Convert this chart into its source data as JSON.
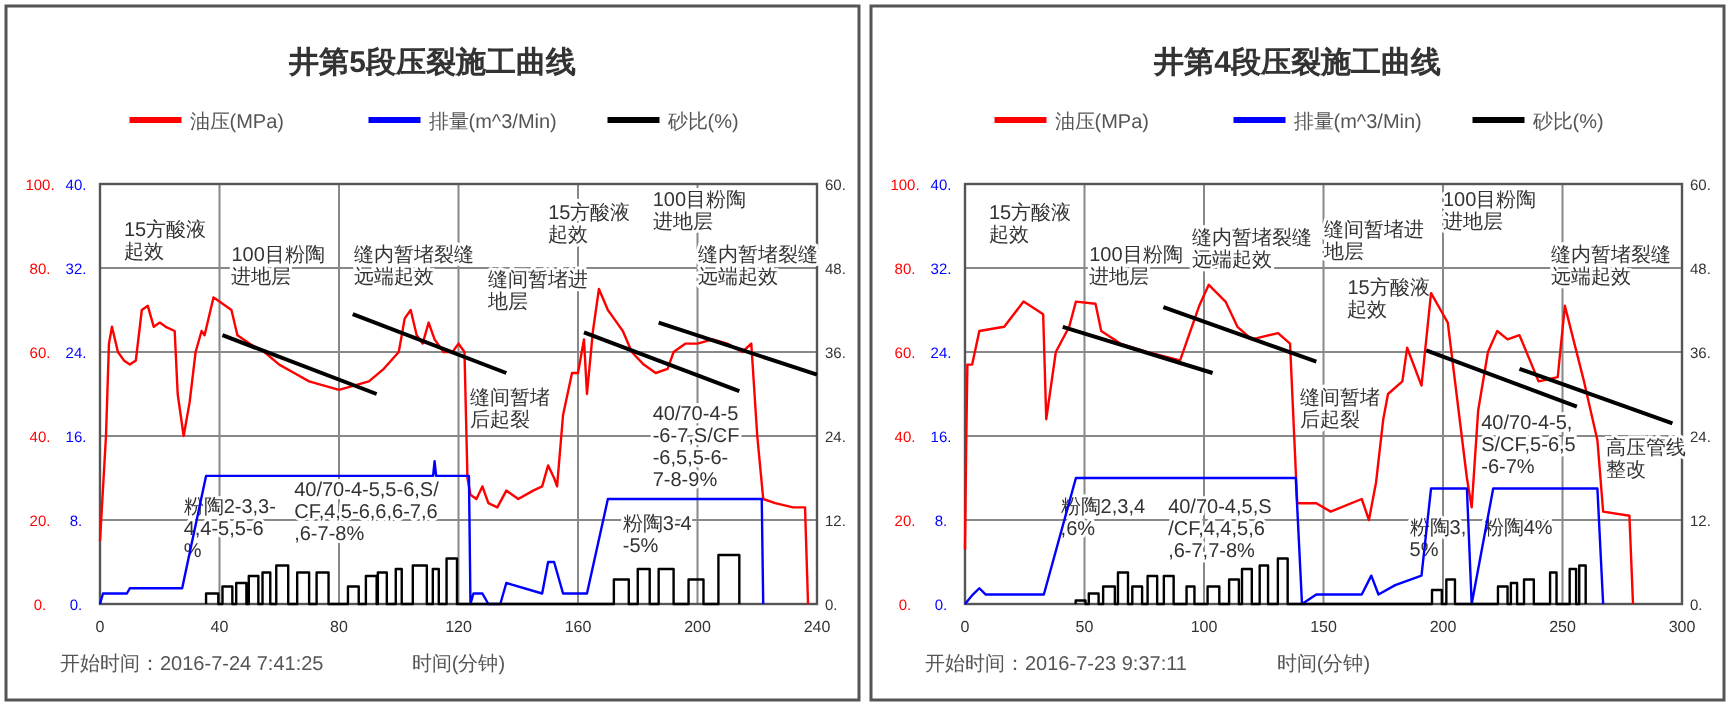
{
  "chart_data": [
    {
      "type": "line",
      "title": "井第5段压裂施工曲线",
      "xlabel": "时间(分钟)",
      "grid": true,
      "legend": "top",
      "xlim": [
        0,
        240
      ],
      "xticks": [
        0,
        40,
        80,
        120,
        160,
        200,
        240
      ],
      "ylim": [
        0,
        100
      ],
      "yticks": [
        {
          "value": 0,
          "label": "0."
        },
        {
          "value": 20,
          "label": "20."
        },
        {
          "value": 40,
          "label": "40."
        },
        {
          "value": 60,
          "label": "60."
        },
        {
          "value": 80,
          "label": "80."
        },
        {
          "value": 100,
          "label": "100."
        }
      ],
      "y3lim": [
        0,
        40
      ],
      "y3ticks": [
        {
          "value": 0,
          "label": "0."
        },
        {
          "value": 8,
          "label": "8."
        },
        {
          "value": 16,
          "label": "16."
        },
        {
          "value": 24,
          "label": "24."
        },
        {
          "value": 32,
          "label": "32."
        },
        {
          "value": 40,
          "label": "40."
        }
      ],
      "y2lim": [
        0,
        60
      ],
      "y2ticks": [
        {
          "value": 0,
          "label": "0."
        },
        {
          "value": 12,
          "label": "12."
        },
        {
          "value": 24,
          "label": "24."
        },
        {
          "value": 36,
          "label": "36."
        },
        {
          "value": 48,
          "label": "48."
        },
        {
          "value": 60,
          "label": "60."
        }
      ],
      "series": [
        {
          "name": "油压(MPa)",
          "color": "#ff0000",
          "x": [
            0,
            2,
            3,
            4,
            6,
            8,
            10,
            12,
            14,
            16,
            18,
            20,
            22,
            25,
            26,
            28,
            30,
            32,
            34,
            35,
            37,
            38,
            40,
            42,
            44,
            46,
            50,
            55,
            60,
            65,
            70,
            75,
            80,
            85,
            90,
            95,
            100,
            102,
            104,
            106,
            108,
            110,
            112,
            115,
            118,
            120,
            122,
            123,
            124,
            126,
            128,
            130,
            133,
            136,
            140,
            145,
            148,
            150,
            152,
            153,
            155,
            158,
            160,
            162,
            163,
            165,
            167,
            170,
            172,
            175,
            178,
            182,
            186,
            190,
            192,
            196,
            200,
            205,
            210,
            215,
            218,
            220,
            222,
            226,
            232,
            236,
            237
          ],
          "values": [
            15,
            40,
            62,
            66,
            60,
            58,
            57,
            58,
            70,
            71,
            66,
            67,
            66,
            65,
            50,
            40,
            48,
            60,
            65,
            64,
            70,
            73,
            72,
            71,
            70,
            64,
            62,
            60,
            57,
            55,
            53,
            52,
            51,
            52,
            53,
            56,
            60,
            68,
            70,
            64,
            62,
            67,
            63,
            60,
            60,
            62,
            60,
            30,
            26,
            25,
            28,
            24,
            23,
            27,
            25,
            27,
            28,
            33,
            30,
            28,
            45,
            55,
            55,
            63,
            50,
            65,
            75,
            70,
            68,
            65,
            60,
            57,
            55,
            56,
            60,
            62,
            62,
            63,
            62,
            60,
            62,
            40,
            25,
            24,
            23,
            23,
            0
          ]
        },
        {
          "name": "排量(m^3/Min)",
          "color": "#0000ff",
          "axis": "y3",
          "x": [
            0,
            1,
            9,
            10,
            22,
            27.5,
            35.5,
            111.5,
            112,
            112.5,
            123.5,
            124,
            125,
            128,
            130,
            134,
            136,
            148,
            150,
            152,
            155,
            163,
            170,
            221.5,
            222
          ],
          "values": [
            0,
            1,
            1,
            1.5,
            1.5,
            1.5,
            12.2,
            12.2,
            13.6,
            12.2,
            12.2,
            0,
            1,
            1,
            0,
            0,
            2,
            1,
            4,
            4,
            1,
            1,
            10,
            10,
            0
          ]
        },
        {
          "name": "砂比(%)",
          "color": "#000000",
          "axis": "y2",
          "x": [
            35.5,
            35.5,
            39.6,
            39.6,
            41,
            41,
            44.3,
            44.3,
            45.6,
            45.6,
            49,
            49,
            49.8,
            49.8,
            53,
            53,
            54.4,
            54.4,
            57,
            57,
            59,
            59,
            63,
            63,
            66,
            66,
            70,
            70,
            72.5,
            72.5,
            76.5,
            76.5,
            83,
            83,
            86.6,
            86.6,
            89,
            89,
            92.6,
            92.6,
            93,
            93,
            96,
            96,
            99,
            99,
            101,
            101,
            104.7,
            104.7,
            109.4,
            109.4,
            111.4,
            111.4,
            113.4,
            113.4,
            116,
            116,
            119.5,
            119.5,
            172,
            172,
            177,
            177,
            180,
            180,
            184,
            184,
            187,
            187,
            192,
            192,
            197,
            197,
            202,
            202,
            207,
            207,
            214,
            214
          ],
          "values": [
            0,
            1.5,
            1.5,
            0,
            0,
            2.5,
            2.5,
            0,
            0,
            3,
            3,
            0,
            0,
            4,
            4,
            0,
            0,
            4.5,
            4.5,
            0,
            0,
            5.5,
            5.5,
            0,
            0,
            4.5,
            4.5,
            0,
            0,
            4.5,
            4.5,
            0,
            0,
            2.5,
            2.5,
            0,
            0,
            4,
            4,
            0,
            0,
            4.5,
            4.5,
            0,
            0,
            5,
            5,
            0,
            0,
            5.5,
            5.5,
            0,
            0,
            5,
            5,
            0,
            0,
            6.5,
            6.5,
            0,
            0,
            3.5,
            3.5,
            0,
            0,
            5,
            5,
            0,
            0,
            5,
            5,
            0,
            0,
            3.5,
            3.5,
            0,
            0,
            7,
            7,
            0
          ]
        },
        {
          "color": "#000000",
          "x": [
            41,
            92.6
          ],
          "values": [
            64,
            50
          ]
        },
        {
          "color": "#000000",
          "x": [
            84.6,
            136
          ],
          "values": [
            69,
            55
          ]
        },
        {
          "color": "#000000",
          "x": [
            162,
            214
          ],
          "values": [
            64.7,
            50.7
          ]
        },
        {
          "color": "#000000",
          "x": [
            187,
            240
          ],
          "values": [
            67,
            54.6
          ]
        }
      ],
      "annotations": [
        "15方酸液起效",
        "100目粉陶进地层",
        "缝内暂堵裂缝远端起效",
        "缝间暂堵进地层",
        "15方酸液起效",
        "100目粉陶进地层",
        "缝内暂堵裂缝远端起效",
        "缝间暂堵后起裂",
        "粉陶2-3,3-4,4-5,5-6%",
        "40/70-4-5,5-6,S/CF,4,5-6,6,6-7,6,6-7-8%",
        "粉陶3-4-5%",
        "40/70-4-5-6-7,S/CF-6,5,5-6-7-8-9%",
        "开始时间：2016-7-24 7:41:25"
      ]
    },
    {
      "type": "line",
      "title": "井第4段压裂施工曲线",
      "xlabel": "时间(分钟)",
      "grid": true,
      "legend": "top",
      "xlim": [
        0,
        300
      ],
      "xticks": [
        0,
        50,
        100,
        150,
        200,
        250,
        300
      ],
      "ylim": [
        0,
        100
      ],
      "yticks": [
        {
          "value": 0,
          "label": "0."
        },
        {
          "value": 20,
          "label": "20."
        },
        {
          "value": 40,
          "label": "40."
        },
        {
          "value": 60,
          "label": "60."
        },
        {
          "value": 80,
          "label": "80."
        },
        {
          "value": 100,
          "label": "100."
        }
      ],
      "y3lim": [
        0,
        40
      ],
      "y3ticks": [
        {
          "value": 0,
          "label": "0."
        },
        {
          "value": 8,
          "label": "8."
        },
        {
          "value": 16,
          "label": "16."
        },
        {
          "value": 24,
          "label": "24."
        },
        {
          "value": 32,
          "label": "32."
        },
        {
          "value": 40,
          "label": "40."
        }
      ],
      "y2lim": [
        0,
        60
      ],
      "y2ticks": [
        {
          "value": 0,
          "label": "0."
        },
        {
          "value": 12,
          "label": "12."
        },
        {
          "value": 24,
          "label": "24."
        },
        {
          "value": 36,
          "label": "36."
        },
        {
          "value": 48,
          "label": "48."
        },
        {
          "value": 60,
          "label": "60."
        }
      ],
      "series": [
        {
          "name": "油压(MPa)",
          "color": "#ff0000",
          "x": [
            0,
            0.5,
            1,
            3,
            6,
            16.4,
            24.5,
            30,
            32.7,
            34,
            38,
            43.6,
            46.4,
            54.6,
            57,
            65,
            76,
            90,
            98,
            102,
            109,
            114,
            120,
            131,
            136,
            139,
            147,
            153,
            166,
            169,
            172,
            175,
            177,
            183,
            185,
            191,
            195,
            199,
            202,
            210,
            212,
            214.7,
            218.8,
            222.7,
            227,
            232,
            240,
            248,
            251,
            255,
            259,
            264.6,
            267,
            278,
            279.5
          ],
          "values": [
            13,
            38,
            57,
            57,
            65,
            66,
            72,
            70,
            69,
            44,
            60,
            66,
            72,
            71.5,
            65,
            62,
            60,
            58,
            71,
            76,
            72,
            66,
            63,
            64.5,
            62,
            24,
            24,
            22,
            25,
            20,
            29,
            44,
            50,
            53,
            61,
            52,
            74,
            70,
            67,
            30,
            23,
            46,
            60,
            65,
            63,
            64,
            53,
            54,
            71,
            62,
            53,
            39,
            22,
            21,
            0
          ]
        },
        {
          "name": "排量(m^3/Min)",
          "color": "#0000ff",
          "axis": "y3",
          "x": [
            0,
            3.3,
            6,
            8.7,
            33,
            46.4,
            138.4,
            141,
            147,
            166,
            170,
            173,
            180,
            191,
            195,
            210,
            212,
            221,
            264.6,
            267
          ],
          "values": [
            0,
            0.9,
            1.5,
            0.9,
            0.9,
            12,
            12,
            0,
            0.9,
            0.9,
            2.7,
            0.9,
            1.8,
            2.7,
            11,
            11,
            0,
            11,
            11,
            0
          ]
        },
        {
          "name": "砂比(%)",
          "color": "#000000",
          "axis": "y2",
          "x": [
            46.3,
            46.3,
            50.4,
            50.4,
            51.8,
            51.8,
            55.9,
            55.9,
            57.8,
            57.8,
            62.7,
            62.7,
            64,
            64,
            68.2,
            68.2,
            70,
            70,
            74.1,
            74.1,
            76.4,
            76.4,
            80.4,
            80.4,
            83.2,
            83.2,
            87.3,
            87.3,
            92.7,
            92.7,
            96,
            96,
            101.5,
            101.5,
            106.4,
            106.4,
            110.5,
            110.5,
            114.6,
            114.6,
            115.9,
            115.9,
            120,
            120,
            123.3,
            123.3,
            126.8,
            126.8,
            130.9,
            130.9,
            135,
            135,
            195.4,
            195.4,
            199.5,
            199.5,
            201.4,
            201.4,
            205,
            205,
            223,
            223,
            227,
            227,
            228.4,
            228.4,
            231,
            231,
            233.9,
            233.9,
            238,
            238,
            244.8,
            244.8,
            247.5,
            247.5,
            253,
            253,
            255.7,
            255.7,
            257,
            257,
            259.7,
            259.7
          ],
          "values": [
            0,
            0.5,
            0.5,
            0,
            0,
            1.5,
            1.5,
            0,
            0,
            2.5,
            2.5,
            0,
            0,
            4.5,
            4.5,
            0,
            0,
            2.5,
            2.5,
            0,
            0,
            4,
            4,
            0,
            0,
            4,
            4,
            0,
            0,
            2.5,
            2.5,
            0,
            0,
            2.5,
            2.5,
            0,
            0,
            3.5,
            3.5,
            0,
            0,
            5,
            5,
            0,
            0,
            5.5,
            5.5,
            0,
            0,
            6.5,
            6.5,
            0,
            0,
            2,
            2,
            0,
            0,
            3.5,
            3.5,
            0,
            0,
            2.5,
            2.5,
            0,
            0,
            3,
            3,
            0,
            0,
            3.5,
            3.5,
            0,
            0,
            4.5,
            4.5,
            0,
            0,
            5,
            5,
            0,
            0,
            5.5,
            5.5,
            0
          ]
        },
        {
          "color": "#000000",
          "x": [
            40.9,
            103.6
          ],
          "values": [
            66,
            55
          ]
        },
        {
          "color": "#000000",
          "x": [
            83,
            147
          ],
          "values": [
            70.7,
            57.7
          ]
        },
        {
          "color": "#000000",
          "x": [
            193,
            256
          ],
          "values": [
            60.4,
            47
          ]
        },
        {
          "color": "#000000",
          "x": [
            232,
            296
          ],
          "values": [
            56,
            43
          ]
        }
      ],
      "annotations": [
        "15方酸液起效",
        "100目粉陶进地层",
        "缝内暂堵裂缝远端起效",
        "缝间暂堵进地层",
        "15方酸液起效",
        "100目粉陶进地层",
        "缝内暂堵裂缝远端起效",
        "缝间暂堵后起裂",
        "高压管线整改",
        "粉陶2,3,4,6%",
        "40/70-4,5,S/CF,4,4,5,6,6-7,7-8%",
        "粉陶3,5%",
        "粉陶4%",
        "40/70-4-5,S/CF,5-6,5-6-7%",
        "开始时间：2016-7-23 9:37:11"
      ]
    }
  ]
}
